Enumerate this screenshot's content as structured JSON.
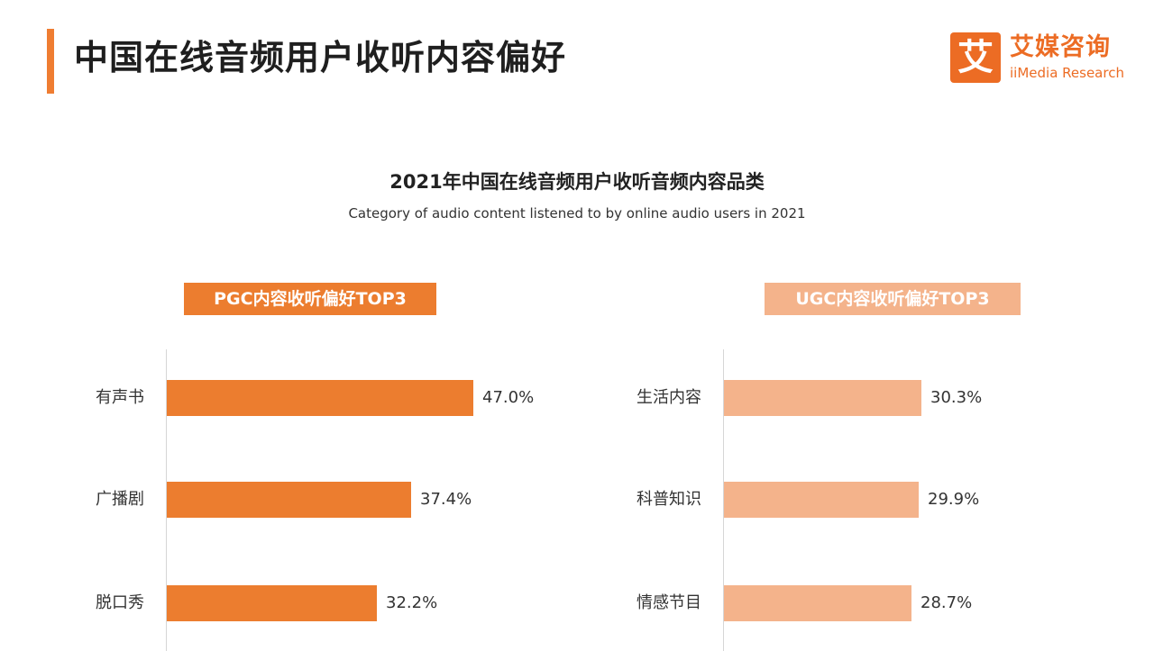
{
  "header": {
    "title": "中国在线音频用户收听内容偏好",
    "brand": {
      "mark": "艾",
      "name": "艾媒咨询",
      "english": "iiMedia Research",
      "color": "#ec6c24"
    }
  },
  "chart_data": [
    {
      "type": "bar",
      "orientation": "horizontal",
      "title": "2021年中国在线音频用户收听音频内容品类",
      "subtitle": "Category of audio content listened to by online audio users in 2021",
      "panel_label": "PGC内容收听偏好TOP3",
      "categories": [
        "有声书",
        "广播剧",
        "脱口秀"
      ],
      "values": [
        47.0,
        37.4,
        32.2
      ],
      "value_labels": [
        "47.0%",
        "37.4%",
        "32.2%"
      ],
      "unit": "%",
      "color": "#ec7d2f",
      "xlim": [
        0,
        50
      ],
      "grid": false
    },
    {
      "type": "bar",
      "orientation": "horizontal",
      "panel_label": "UGC内容收听偏好TOP3",
      "categories": [
        "生活内容",
        "科普知识",
        "情感节目"
      ],
      "values": [
        30.3,
        29.9,
        28.7
      ],
      "value_labels": [
        "30.3%",
        "29.9%",
        "28.7%"
      ],
      "unit": "%",
      "color": "#f4b38b",
      "xlim": [
        0,
        50
      ],
      "grid": false
    }
  ]
}
